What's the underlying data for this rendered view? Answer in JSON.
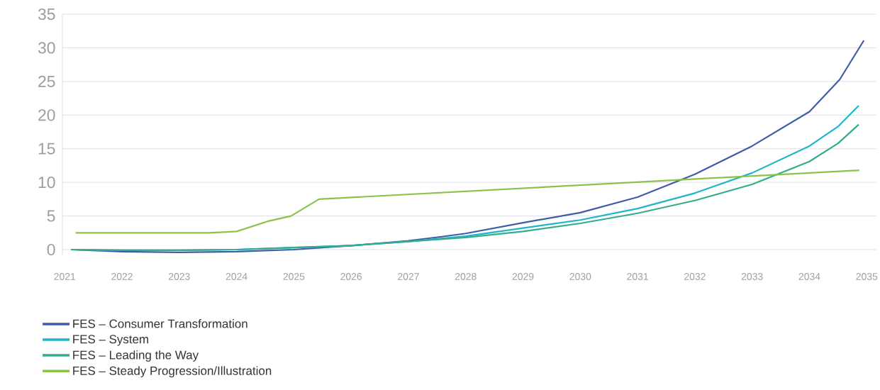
{
  "chart_data": {
    "type": "line",
    "xlim": [
      2020.96,
      2035.17
    ],
    "ylim": [
      -1,
      35
    ],
    "xticks": [
      2021,
      2022,
      2023,
      2024,
      2025,
      2026,
      2027,
      2028,
      2029,
      2030,
      2031,
      2032,
      2033,
      2034,
      2035
    ],
    "yticks": [
      0,
      5,
      10,
      15,
      20,
      25,
      30,
      35
    ],
    "grid": "y",
    "legend": "bottom",
    "marker": "none",
    "series": [
      {
        "name": "FES – Consumer Transformation",
        "color": "#3f5ca8",
        "x": [
          2021.11,
          2022,
          2023,
          2024,
          2025,
          2026,
          2027,
          2027.56,
          2028,
          2029,
          2030,
          2031,
          2032,
          2033,
          2034,
          2034.53,
          2034.95
        ],
        "values": [
          0,
          -0.3,
          -0.4,
          -0.3,
          0,
          0.6,
          1.3,
          1.9,
          2.4,
          4.0,
          5.5,
          7.8,
          11.2,
          15.4,
          20.5,
          25.3,
          31.1
        ]
      },
      {
        "name": "FES – System",
        "color": "#1fb5c9",
        "x": [
          2021.11,
          2022,
          2023,
          2024,
          2025,
          2026,
          2027,
          2028,
          2029,
          2030,
          2031,
          2032,
          2033,
          2034,
          2034.5,
          2034.86
        ],
        "values": [
          0,
          -0.1,
          -0.1,
          0,
          0.3,
          0.6,
          1.2,
          2.0,
          3.2,
          4.4,
          6.1,
          8.4,
          11.4,
          15.4,
          18.3,
          21.4
        ]
      },
      {
        "name": "FES – Leading the Way",
        "color": "#35ab8f",
        "x": [
          2021.11,
          2022,
          2023,
          2024,
          2025,
          2026,
          2027,
          2028,
          2029,
          2030,
          2031,
          2032,
          2033,
          2034,
          2034.5,
          2034.86
        ],
        "values": [
          0,
          -0.1,
          -0.1,
          0,
          0.3,
          0.6,
          1.2,
          1.8,
          2.7,
          3.9,
          5.4,
          7.3,
          9.7,
          13.1,
          15.8,
          18.6
        ]
      },
      {
        "name": "FES – Steady Progression/Illustration",
        "color": "#8bc34a",
        "x": [
          2021.19,
          2023.52,
          2024.0,
          2024.54,
          2024.95,
          2025.44,
          2034.87
        ],
        "values": [
          2.5,
          2.5,
          2.7,
          4.2,
          5.0,
          7.5,
          11.8
        ]
      }
    ]
  }
}
